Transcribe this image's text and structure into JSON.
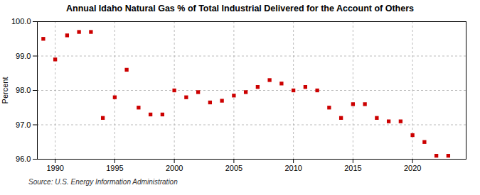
{
  "chart_data": {
    "type": "scatter",
    "title": "Annual Idaho Natural Gas % of Total Industrial Delivered for the Account of Others",
    "ylabel": "Percent",
    "source": "Source: U.S. Energy Information Administration",
    "x": [
      1989,
      1990,
      1991,
      1992,
      1993,
      1994,
      1995,
      1996,
      1997,
      1998,
      1999,
      2000,
      2001,
      2002,
      2003,
      2004,
      2005,
      2006,
      2007,
      2008,
      2009,
      2010,
      2011,
      2012,
      2013,
      2014,
      2015,
      2016,
      2017,
      2018,
      2019,
      2020,
      2021,
      2022,
      2023
    ],
    "values": [
      99.5,
      98.9,
      99.6,
      99.7,
      99.7,
      97.2,
      97.8,
      98.6,
      97.5,
      97.3,
      97.3,
      98.0,
      97.8,
      97.95,
      97.65,
      97.7,
      97.85,
      97.95,
      98.1,
      98.3,
      98.2,
      98.0,
      98.1,
      98.0,
      97.5,
      97.2,
      97.6,
      97.6,
      97.2,
      97.1,
      97.1,
      96.7,
      96.5,
      96.1,
      96.1
    ],
    "color": "#cc0000",
    "marker": "square",
    "xlim": [
      1988.5,
      2024.5
    ],
    "xticks": [
      1990,
      1995,
      2000,
      2005,
      2010,
      2015,
      2020
    ],
    "ylim": [
      96.0,
      100.0
    ],
    "yticks": [
      {
        "value": 96.0,
        "label": "96.0"
      },
      {
        "value": 97.0,
        "label": "97.0"
      },
      {
        "value": 98.0,
        "label": "98.0"
      },
      {
        "value": 99.0,
        "label": "99.0"
      },
      {
        "value": 100.0,
        "label": "100.0"
      }
    ],
    "grid": true
  }
}
